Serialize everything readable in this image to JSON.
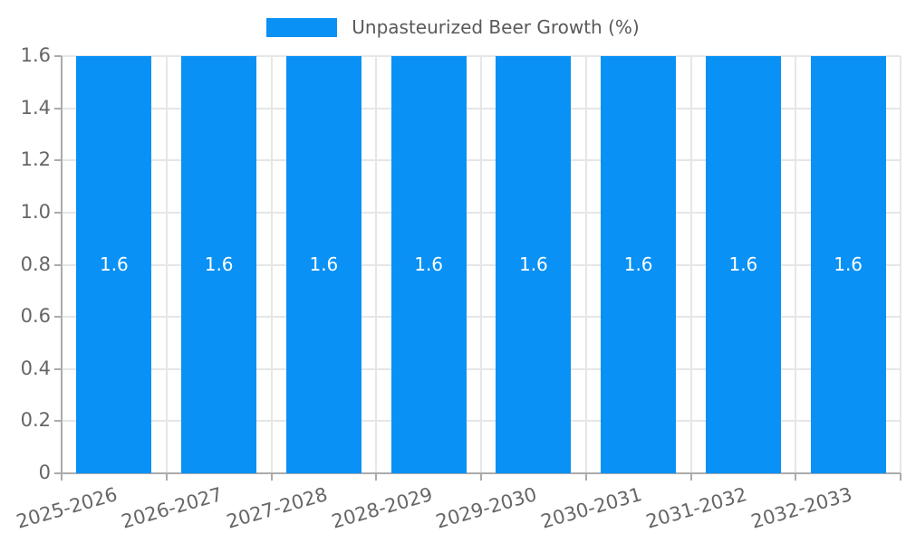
{
  "legend": {
    "label": "Unpasteurized Beer Growth (%)"
  },
  "chart_data": {
    "type": "bar",
    "title": "",
    "categories": [
      "2025-2026",
      "2026-2027",
      "2027-2028",
      "2028-2029",
      "2029-2030",
      "2030-2031",
      "2031-2032",
      "2032-2033"
    ],
    "series": [
      {
        "name": "Unpasteurized Beer Growth (%)",
        "values": [
          1.6,
          1.6,
          1.6,
          1.6,
          1.6,
          1.6,
          1.6,
          1.6
        ]
      }
    ],
    "bar_labels": [
      "1.6",
      "1.6",
      "1.6",
      "1.6",
      "1.6",
      "1.6",
      "1.6",
      "1.6"
    ],
    "xlabel": "",
    "ylabel": "",
    "ylim": [
      0,
      1.6
    ],
    "ytick_labels": [
      "0",
      "0.2",
      "0.4",
      "0.6",
      "0.8",
      "1.0",
      "1.2",
      "1.4",
      "1.6"
    ],
    "grid": true,
    "legend_position": "top-center",
    "colors": {
      "bar": "#0991f5",
      "grid": "#e6e6e6",
      "axis": "#ababab",
      "tick_text": "#666666",
      "legend_text": "#595959",
      "bar_value_text": "#ffffff",
      "background": "#ffffff"
    }
  }
}
